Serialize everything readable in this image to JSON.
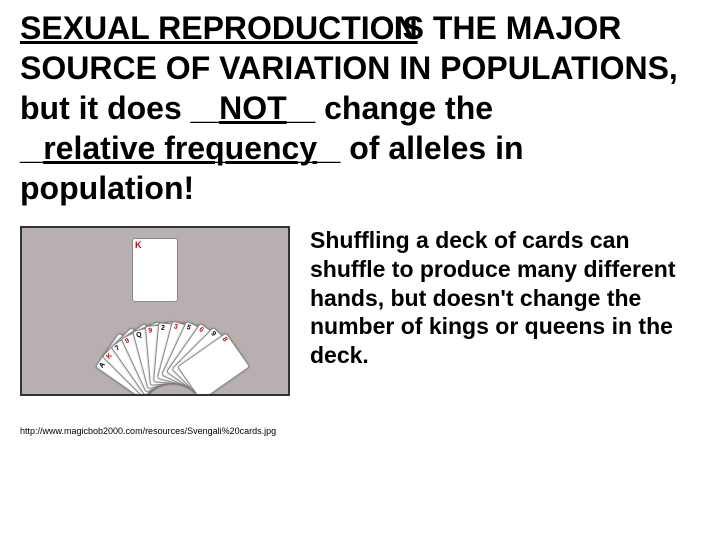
{
  "main": {
    "blank1": "SEXUAL REPRODUCTION",
    "seg1": "_____________________",
    "seg2": "IS THE MAJOR SOURCE OF VARIATION IN POPULATIONS, but it does ",
    "blank2_line": "_______",
    "blank2": "NOT",
    "seg3": " change the ",
    "blank3_line": "__________________",
    "blank3": "relative frequency",
    "seg4": " of alleles in population!"
  },
  "caption": "Shuffling a deck of cards can shuffle to produce many different hands, but doesn't change the number of kings or queens in the deck.",
  "url": "http://www.magicbob2000.com/resources/Svengali%20cards.jpg",
  "cards": {
    "top": "K",
    "fan": [
      "A",
      "K",
      "7",
      "9",
      "Q",
      "9",
      "2",
      "3",
      "5",
      "6",
      "9",
      "8"
    ]
  },
  "colors": {
    "background": "#ffffff",
    "text": "#000000",
    "image_bg": "#b8b0b0",
    "red": "#c00"
  }
}
